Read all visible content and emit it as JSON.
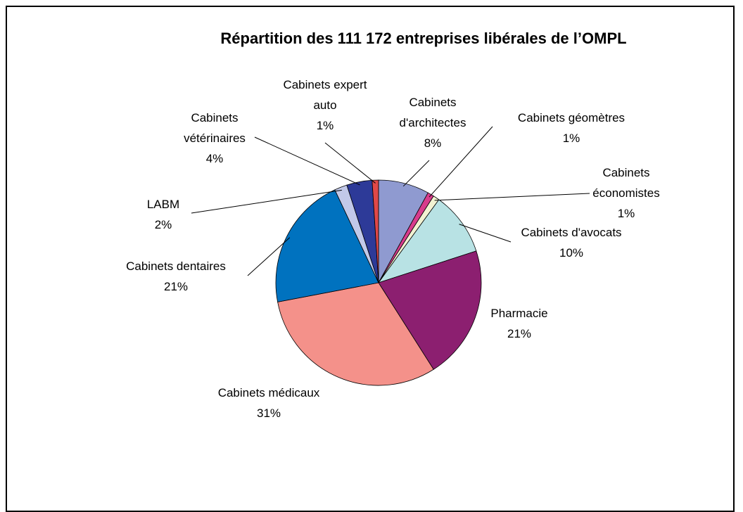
{
  "chart_data": {
    "type": "pie",
    "title": "Répartition des 111 172 entreprises libérales de l’OMPL",
    "categories": [
      "Cabinets d'architectes",
      "Cabinets géomètres",
      "Cabinets économistes",
      "Cabinets d'avocats",
      "Pharmacie",
      "Cabinets médicaux",
      "Cabinets dentaires",
      "LABM",
      "Cabinets vétérinaires",
      "Cabinets expert auto"
    ],
    "values": [
      8,
      1,
      1,
      10,
      21,
      31,
      21,
      2,
      4,
      1
    ],
    "value_labels": [
      "8%",
      "1%",
      "1%",
      "10%",
      "21%",
      "31%",
      "21%",
      "2%",
      "4%",
      "1%"
    ],
    "colors": [
      "#8f9ad0",
      "#d83c8c",
      "#f2f2d2",
      "#b8e2e4",
      "#8c1f70",
      "#f4918a",
      "#0072bf",
      "#c2c9e9",
      "#2d3a98",
      "#e04848"
    ]
  }
}
